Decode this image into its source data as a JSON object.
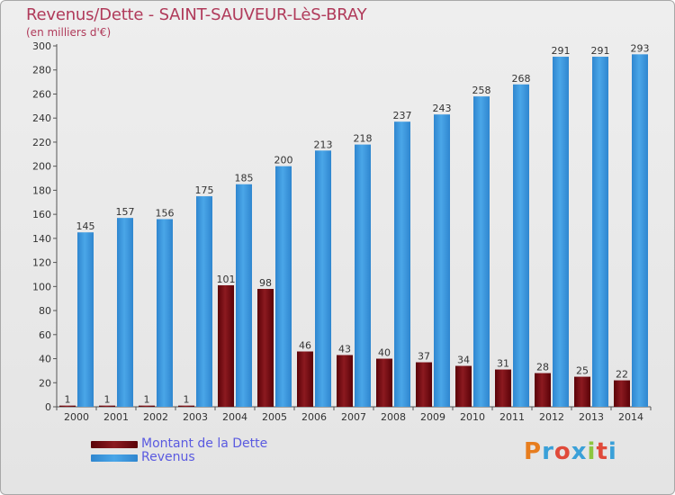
{
  "header": {
    "title": "Revenus/Dette - SAINT-SAUVEUR-LèS-BRAY",
    "subtitle": "(en milliers d'€)"
  },
  "legend": {
    "dette_label": "Montant de la Dette",
    "revenus_label": "Revenus"
  },
  "brand": {
    "text": "Proxiti",
    "colors": [
      "#e77d1e",
      "#3aa0d8",
      "#e04a3a",
      "#3aa0d8",
      "#8dc63f",
      "#e04a3a",
      "#3aa0d8"
    ]
  },
  "colors": {
    "dette": "#7a0a10",
    "revenus": "#3d95dc",
    "title": "#b03a5a",
    "legend_text": "#5a5ae0"
  },
  "chart_data": {
    "type": "bar",
    "title": "Revenus/Dette - SAINT-SAUVEUR-LèS-BRAY",
    "subtitle": "(en milliers d'€)",
    "categories": [
      "2000",
      "2001",
      "2002",
      "2003",
      "2004",
      "2005",
      "2006",
      "2007",
      "2008",
      "2009",
      "2010",
      "2011",
      "2012",
      "2013",
      "2014"
    ],
    "series": [
      {
        "name": "Montant de la Dette",
        "values": [
          1,
          1,
          1,
          1,
          101,
          98,
          46,
          43,
          40,
          37,
          34,
          31,
          28,
          25,
          22
        ]
      },
      {
        "name": "Revenus",
        "values": [
          145,
          157,
          156,
          175,
          185,
          200,
          213,
          218,
          237,
          243,
          258,
          268,
          291,
          291,
          293
        ]
      }
    ],
    "ylim": [
      0,
      300
    ],
    "yticks": [
      0,
      20,
      40,
      60,
      80,
      100,
      120,
      140,
      160,
      180,
      200,
      220,
      240,
      260,
      280,
      300
    ],
    "grid": false,
    "legend_position": "bottom-left"
  }
}
